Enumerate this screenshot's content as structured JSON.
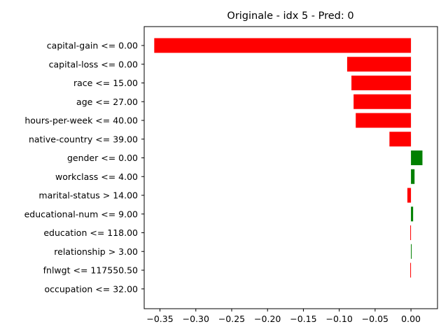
{
  "chart_data": {
    "type": "bar",
    "orientation": "horizontal",
    "title": "Originale - idx 5 - Pred: 0",
    "xlabel": "",
    "ylabel": "",
    "xlim": [
      -0.372,
      0.037
    ],
    "xticks": [
      -0.35,
      -0.3,
      -0.25,
      -0.2,
      -0.15,
      -0.1,
      -0.05,
      0.0
    ],
    "xtick_labels": [
      "−0.35",
      "−0.30",
      "−0.25",
      "−0.20",
      "−0.15",
      "−0.10",
      "−0.05",
      "0.00"
    ],
    "grid": false,
    "colors": {
      "negative": "#ff0000",
      "positive": "#008000"
    },
    "categories": [
      "capital-gain <= 0.00",
      "capital-loss <= 0.00",
      "race <= 15.00",
      "age <= 27.00",
      "hours-per-week <= 40.00",
      "native-country <= 39.00",
      "gender <= 0.00",
      "workclass <= 4.00",
      "marital-status > 14.00",
      "educational-num <= 9.00",
      "education <= 118.00",
      "relationship > 3.00",
      "fnlwgt <= 117550.50",
      "occupation <= 32.00"
    ],
    "values": [
      -0.358,
      -0.089,
      -0.083,
      -0.08,
      -0.077,
      -0.03,
      0.016,
      0.005,
      -0.005,
      0.003,
      -0.001,
      0.001,
      -0.001,
      0.0
    ]
  }
}
